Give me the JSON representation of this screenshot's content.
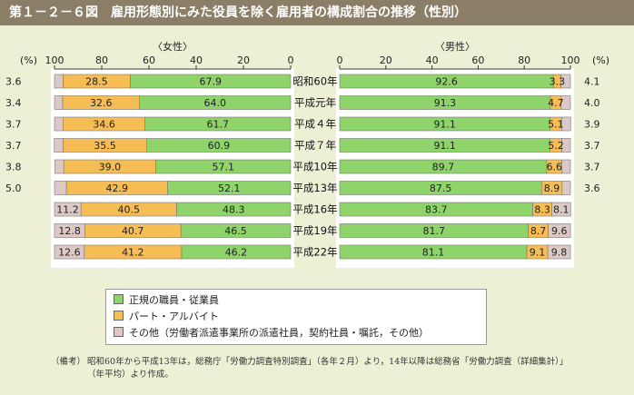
{
  "header": {
    "figure_no": "第１－２－６図",
    "title": "雇用形態別にみた役員を除く雇用者の構成割合の推移（性別）"
  },
  "chart_data": {
    "type": "bar",
    "stacked": true,
    "orientation": "horizontal",
    "categories": [
      "昭和60年",
      "平成元年",
      "平成４年",
      "平成７年",
      "平成10年",
      "平成13年",
      "平成16年",
      "平成19年",
      "平成22年"
    ],
    "panels": [
      {
        "title": "〈女性〉",
        "axis_unit": "(%)",
        "direction": "right-to-left",
        "xlim": [
          0,
          100
        ],
        "ticks": [
          "100",
          "80",
          "60",
          "40",
          "20",
          "0"
        ],
        "series": [
          {
            "name": "正規の職員・従業員",
            "values": [
              67.9,
              64.0,
              61.7,
              60.9,
              57.1,
              52.1,
              48.3,
              46.5,
              46.2
            ]
          },
          {
            "name": "パート・アルバイト",
            "values": [
              28.5,
              32.6,
              34.6,
              35.5,
              39.0,
              42.9,
              40.5,
              40.7,
              41.2
            ]
          },
          {
            "name": "その他",
            "values": [
              3.6,
              3.4,
              3.7,
              3.7,
              3.8,
              5.0,
              11.2,
              12.8,
              12.6
            ]
          }
        ],
        "labels": {
          "regular": [
            "67.9",
            "64.0",
            "61.7",
            "60.9",
            "57.1",
            "52.1",
            "48.3",
            "46.5",
            "46.2"
          ],
          "part": [
            "28.5",
            "32.6",
            "34.6",
            "35.5",
            "39.0",
            "42.9",
            "40.5",
            "40.7",
            "41.2"
          ],
          "other": [
            "3.6",
            "3.4",
            "3.7",
            "3.7",
            "3.8",
            "5.0",
            "11.2",
            "12.8",
            "12.6"
          ]
        }
      },
      {
        "title": "〈男性〉",
        "axis_unit": "(%)",
        "direction": "left-to-right",
        "xlim": [
          0,
          100
        ],
        "ticks": [
          "0",
          "20",
          "40",
          "60",
          "80",
          "100"
        ],
        "series": [
          {
            "name": "正規の職員・従業員",
            "values": [
              92.6,
              91.3,
              91.1,
              91.1,
              89.7,
              87.5,
              83.7,
              81.7,
              81.1
            ]
          },
          {
            "name": "パート・アルバイト",
            "values": [
              3.3,
              4.7,
              5.1,
              5.2,
              6.6,
              8.9,
              8.3,
              8.7,
              9.1
            ]
          },
          {
            "name": "その他",
            "values": [
              4.1,
              4.0,
              3.9,
              3.7,
              3.7,
              3.6,
              8.1,
              9.6,
              9.8
            ]
          }
        ],
        "labels": {
          "regular": [
            "92.6",
            "91.3",
            "91.1",
            "91.1",
            "89.7",
            "87.5",
            "83.7",
            "81.7",
            "81.1"
          ],
          "part": [
            "3.3",
            "4.7",
            "5.1",
            "5.2",
            "6.6",
            "8.9",
            "8.3",
            "8.7",
            "9.1"
          ],
          "other": [
            "4.1",
            "4.0",
            "3.9",
            "3.7",
            "3.7",
            "3.6",
            "8.1",
            "9.6",
            "9.8"
          ]
        }
      }
    ],
    "colors": {
      "regular": "#8fd46a",
      "part": "#f6bd55",
      "other": "#dcc9c3"
    }
  },
  "legend": {
    "items": [
      {
        "label": "正規の職員・従業員",
        "color": "#8fd46a"
      },
      {
        "label": "パート・アルバイト",
        "color": "#f6bd55"
      },
      {
        "label": "その他（労働者派遣事業所の派遣社員，契約社員・嘱託，その他）",
        "color": "#dcc9c3"
      }
    ]
  },
  "note": {
    "label": "（備考）",
    "line1": "昭和60年から平成13年は，総務庁「労働力調査特別調査」（各年２月）より，14年以降は総務省「労働力調査（詳細集計）」",
    "line2": "（年平均）より作成。"
  }
}
